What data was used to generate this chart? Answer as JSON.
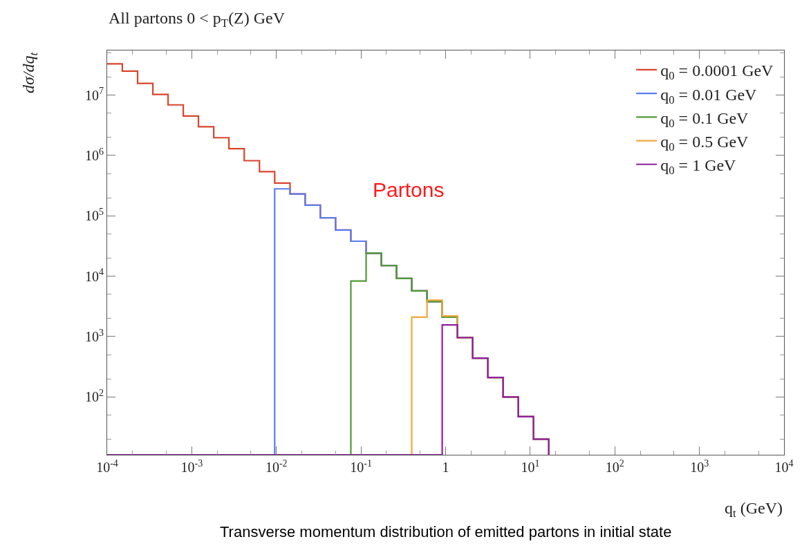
{
  "chart_data": {
    "type": "histogram",
    "title": "All partons 0 < p$_{T}$(Z) GeV",
    "xlabel": "q$_{t}$ (GeV)",
    "ylabel": "dσ/dq$_{t}$",
    "annotations": [
      "Partons",
      "Transverse momentum distribution of emitted partons in initial state"
    ],
    "bins": [
      0.0001,
      0.000151,
      0.000229,
      0.000347,
      0.000525,
      0.000794,
      0.0012,
      0.00182,
      0.00275,
      0.00417,
      0.00631,
      0.00955,
      0.0145,
      0.0219,
      0.0331,
      0.0501,
      0.0759,
      0.115,
      0.174,
      0.263,
      0.398,
      0.603,
      0.912,
      1.38,
      2.09,
      3.16,
      4.79,
      7.24,
      10.96,
      16.6
    ],
    "series": [
      {
        "name": "q$_{0}$ = 0.0001 GeV",
        "color": "#d9442c",
        "values": [
          33000000,
          25000000,
          15700000,
          10300000,
          6900000,
          4500000,
          3000000,
          1970000,
          1300000,
          820000,
          540000,
          350000,
          230000,
          150000,
          93000,
          58000,
          38000,
          24000,
          15000,
          9200,
          5700,
          3800,
          2100,
          960,
          440,
          210,
          100,
          47,
          20
        ]
      },
      {
        "name": "q$_{0}$ = 0.01 GeV",
        "color": "#5b7cf0",
        "values": [
          null,
          null,
          null,
          null,
          null,
          null,
          null,
          null,
          null,
          null,
          null,
          280000,
          230000,
          150000,
          93000,
          58000,
          38000,
          24000,
          15000,
          9200,
          5700,
          3800,
          2100,
          960,
          440,
          210,
          100,
          47,
          20
        ]
      },
      {
        "name": "q$_{0}$ = 0.1 GeV",
        "color": "#4f9a34",
        "values": [
          null,
          null,
          null,
          null,
          null,
          null,
          null,
          null,
          null,
          null,
          null,
          null,
          null,
          null,
          null,
          null,
          8300,
          24000,
          15000,
          9200,
          5700,
          3800,
          2100,
          960,
          440,
          210,
          100,
          47,
          20
        ]
      },
      {
        "name": "q$_{0}$ = 0.5 GeV",
        "color": "#f0a93a",
        "values": [
          null,
          null,
          null,
          null,
          null,
          null,
          null,
          null,
          null,
          null,
          null,
          null,
          null,
          null,
          null,
          null,
          null,
          null,
          null,
          null,
          2100,
          4000,
          2200,
          960,
          440,
          210,
          100,
          47,
          20
        ]
      },
      {
        "name": "q$_{0}$ = 1 GeV",
        "color": "#8f1fa0",
        "values": [
          null,
          null,
          null,
          null,
          null,
          null,
          null,
          null,
          null,
          null,
          null,
          null,
          null,
          null,
          null,
          null,
          null,
          null,
          null,
          null,
          null,
          null,
          1560,
          960,
          440,
          210,
          100,
          47,
          20
        ]
      }
    ],
    "log": "xy",
    "xlim": [
      0.0001,
      10000
    ],
    "ylim": [
      11,
      55000000
    ],
    "xticks": [
      {
        "value": 0.0001,
        "label": "10$^{-4}$"
      },
      {
        "value": 0.001,
        "label": "10$^{-3}$"
      },
      {
        "value": 0.01,
        "label": "10$^{-2}$"
      },
      {
        "value": 0.1,
        "label": "10$^{-1}$"
      },
      1,
      {
        "value": 10,
        "label": "10$^{1}$"
      },
      {
        "value": 100,
        "label": "10$^{2}$"
      },
      {
        "value": 1000,
        "label": "10$^{3}$"
      },
      {
        "value": 10000,
        "label": "10$^{4}$"
      }
    ],
    "yticks": [
      {
        "value": 100,
        "label": "10$^{2}$"
      },
      {
        "value": 1000,
        "label": "10$^{3}$"
      },
      {
        "value": 10000,
        "label": "10$^{4}$"
      },
      {
        "value": 100000,
        "label": "10$^{5}$"
      },
      {
        "value": 1000000,
        "label": "10$^{6}$"
      },
      {
        "value": 10000000,
        "label": "10$^{7}$"
      }
    ],
    "legend": "top right"
  }
}
